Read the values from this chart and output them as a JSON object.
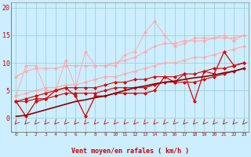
{
  "x": [
    0,
    1,
    2,
    3,
    4,
    5,
    6,
    7,
    8,
    9,
    10,
    11,
    12,
    13,
    14,
    15,
    16,
    17,
    18,
    19,
    20,
    21,
    22,
    23
  ],
  "line_pink_jagged_high": [
    4.0,
    9.5,
    9.5,
    5.0,
    5.0,
    10.5,
    5.5,
    12.0,
    9.5,
    9.5,
    9.5,
    11.5,
    12.0,
    15.5,
    17.5,
    15.0,
    13.0,
    13.5,
    14.5,
    14.5,
    14.5,
    15.0,
    14.0,
    15.0
  ],
  "line_pink_smooth_hi": [
    7.5,
    8.5,
    9.0,
    9.0,
    9.0,
    9.5,
    9.5,
    9.5,
    9.5,
    9.5,
    10.0,
    10.5,
    11.0,
    12.0,
    13.0,
    13.5,
    13.5,
    14.0,
    14.0,
    14.0,
    14.5,
    14.5,
    14.5,
    15.0
  ],
  "line_pink_smooth_lo": [
    4.0,
    4.5,
    5.0,
    5.5,
    5.5,
    6.0,
    6.0,
    6.5,
    7.0,
    7.5,
    7.5,
    8.0,
    8.5,
    9.0,
    9.5,
    10.0,
    10.0,
    10.5,
    11.0,
    11.0,
    11.5,
    12.0,
    12.5,
    13.0
  ],
  "line_red_jagged": [
    3.0,
    0.3,
    3.0,
    3.5,
    5.0,
    5.5,
    4.0,
    0.3,
    4.0,
    4.0,
    4.5,
    4.5,
    4.5,
    4.5,
    5.0,
    7.5,
    6.5,
    8.0,
    3.0,
    8.5,
    8.0,
    12.0,
    9.5,
    10.0
  ],
  "line_red_smooth_hi": [
    3.0,
    3.5,
    4.0,
    4.5,
    5.0,
    5.5,
    5.5,
    5.5,
    5.5,
    6.0,
    6.5,
    6.5,
    7.0,
    7.0,
    7.5,
    7.5,
    7.5,
    8.0,
    8.0,
    8.5,
    9.0,
    9.0,
    9.5,
    10.0
  ],
  "line_red_smooth_lo": [
    3.0,
    3.0,
    3.5,
    3.5,
    4.0,
    4.5,
    4.5,
    4.5,
    4.5,
    5.0,
    5.5,
    5.5,
    5.5,
    5.5,
    6.0,
    6.5,
    6.5,
    6.5,
    6.5,
    7.0,
    7.5,
    8.0,
    8.5,
    9.0
  ],
  "line_darkred_trend": [
    0.3,
    0.5,
    1.0,
    1.5,
    2.0,
    2.5,
    3.0,
    3.3,
    3.7,
    4.0,
    4.5,
    5.0,
    5.5,
    5.8,
    6.2,
    6.5,
    6.7,
    7.0,
    7.3,
    7.5,
    7.8,
    8.2,
    8.5,
    9.0
  ],
  "bg_color": "#cceeff",
  "grid_color": "#99cccc",
  "axis_label": "Vent moyen/en rafales ( km/h )",
  "ylabel_vals": [
    0,
    5,
    10,
    15,
    20
  ],
  "xlabel_vals": [
    0,
    1,
    2,
    3,
    4,
    5,
    6,
    7,
    8,
    9,
    10,
    11,
    12,
    13,
    14,
    15,
    16,
    17,
    18,
    19,
    20,
    21,
    22,
    23
  ],
  "color_pink_light": "#ffaaaa",
  "color_pink_mid": "#ff8888",
  "color_red": "#dd0000",
  "color_darkred": "#880000",
  "color_text": "#cc0000",
  "arrow_color": "#cc2222"
}
